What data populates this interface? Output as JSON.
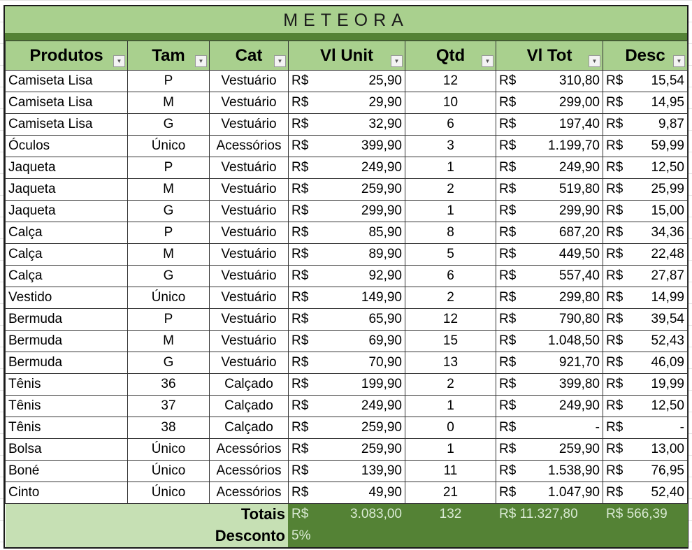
{
  "title": "METEORA",
  "headers": [
    "Produtos",
    "Tam",
    "Cat",
    "Vl Unit",
    "Qtd",
    "Vl Tot",
    "Desc"
  ],
  "currency": "R$",
  "rows": [
    [
      "Camiseta Lisa",
      "P",
      "Vestuário",
      "25,90",
      "12",
      "310,80",
      "15,54"
    ],
    [
      "Camiseta Lisa",
      "M",
      "Vestuário",
      "29,90",
      "10",
      "299,00",
      "14,95"
    ],
    [
      "Camiseta Lisa",
      "G",
      "Vestuário",
      "32,90",
      "6",
      "197,40",
      "9,87"
    ],
    [
      "Óculos",
      "Único",
      "Acessórios",
      "399,90",
      "3",
      "1.199,70",
      "59,99"
    ],
    [
      "Jaqueta",
      "P",
      "Vestuário",
      "249,90",
      "1",
      "249,90",
      "12,50"
    ],
    [
      "Jaqueta",
      "M",
      "Vestuário",
      "259,90",
      "2",
      "519,80",
      "25,99"
    ],
    [
      "Jaqueta",
      "G",
      "Vestuário",
      "299,90",
      "1",
      "299,90",
      "15,00"
    ],
    [
      "Calça",
      "P",
      "Vestuário",
      "85,90",
      "8",
      "687,20",
      "34,36"
    ],
    [
      "Calça",
      "M",
      "Vestuário",
      "89,90",
      "5",
      "449,50",
      "22,48"
    ],
    [
      "Calça",
      "G",
      "Vestuário",
      "92,90",
      "6",
      "557,40",
      "27,87"
    ],
    [
      "Vestido",
      "Único",
      "Vestuário",
      "149,90",
      "2",
      "299,80",
      "14,99"
    ],
    [
      "Bermuda",
      "P",
      "Vestuário",
      "65,90",
      "12",
      "790,80",
      "39,54"
    ],
    [
      "Bermuda",
      "M",
      "Vestuário",
      "69,90",
      "15",
      "1.048,50",
      "52,43"
    ],
    [
      "Bermuda",
      "G",
      "Vestuário",
      "70,90",
      "13",
      "921,70",
      "46,09"
    ],
    [
      "Tênis",
      "36",
      "Calçado",
      "199,90",
      "2",
      "399,80",
      "19,99"
    ],
    [
      "Tênis",
      "37",
      "Calçado",
      "249,90",
      "1",
      "249,90",
      "12,50"
    ],
    [
      "Tênis",
      "38",
      "Calçado",
      "259,90",
      "0",
      "-",
      "-"
    ],
    [
      "Bolsa",
      "Único",
      "Acessórios",
      "259,90",
      "1",
      "259,90",
      "13,00"
    ],
    [
      "Boné",
      "Único",
      "Acessórios",
      "139,90",
      "11",
      "1.538,90",
      "76,95"
    ],
    [
      "Cinto",
      "Único",
      "Acessórios",
      "49,90",
      "21",
      "1.047,90",
      "52,40"
    ]
  ],
  "totals": {
    "label": "Totais",
    "vl_unit": "3.083,00",
    "qtd": "132",
    "vl_tot": "R$ 11.327,80",
    "desc": "R$ 566,39"
  },
  "discount": {
    "label": "Desconto",
    "value": "5%"
  },
  "colors": {
    "header": "#a9d08e",
    "dark": "#548235",
    "light": "#c6e0b4"
  }
}
